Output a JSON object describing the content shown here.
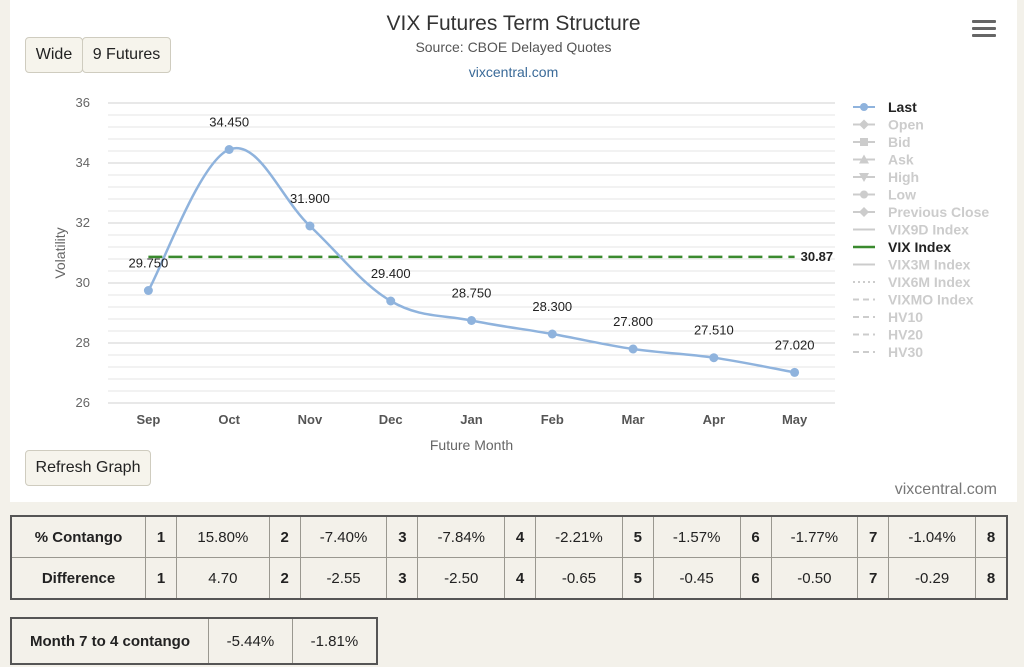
{
  "buttons": {
    "wide": "Wide",
    "futures": "9 Futures",
    "refresh": "Refresh Graph"
  },
  "header": {
    "title": "VIX Futures Term Structure",
    "subtitle": "Source: CBOE Delayed Quotes",
    "credit_link": "vixcentral.com"
  },
  "credit_corner": "vixcentral.com",
  "icons": {
    "menu": "hamburger-menu-icon"
  },
  "chart_data": {
    "type": "line",
    "title": "VIX Futures Term Structure",
    "subtitle": "Source: CBOE Delayed Quotes",
    "xlabel": "Future Month",
    "ylabel": "Volatility",
    "ylim": [
      26,
      36
    ],
    "yticks": [
      26,
      28,
      30,
      32,
      34,
      36
    ],
    "categories": [
      "Sep",
      "Oct",
      "Nov",
      "Dec",
      "Jan",
      "Feb",
      "Mar",
      "Apr",
      "May"
    ],
    "series": [
      {
        "name": "Last",
        "values": [
          29.75,
          34.45,
          31.9,
          29.4,
          28.75,
          28.3,
          27.8,
          27.51,
          27.02
        ],
        "labels": [
          "29.750",
          "34.450",
          "31.900",
          "29.400",
          "28.750",
          "28.300",
          "27.800",
          "27.510",
          "27.020"
        ],
        "color": "#8fb3dd"
      }
    ],
    "reference_lines": [
      {
        "name": "VIX Index",
        "value": 30.87,
        "label": "30.87",
        "color": "#3a8a2e",
        "style": "dashed"
      }
    ],
    "grid": true,
    "legend_position": "right",
    "legend": [
      {
        "name": "Last",
        "active": true,
        "symbol": "circle"
      },
      {
        "name": "Open",
        "active": false,
        "symbol": "diamond"
      },
      {
        "name": "Bid",
        "active": false,
        "symbol": "square"
      },
      {
        "name": "Ask",
        "active": false,
        "symbol": "triangle"
      },
      {
        "name": "High",
        "active": false,
        "symbol": "triangle-down"
      },
      {
        "name": "Low",
        "active": false,
        "symbol": "circle"
      },
      {
        "name": "Previous Close",
        "active": false,
        "symbol": "diamond"
      },
      {
        "name": "VIX9D Index",
        "active": false,
        "symbol": "line"
      },
      {
        "name": "VIX Index",
        "active": true,
        "symbol": "line-green"
      },
      {
        "name": "VIX3M Index",
        "active": false,
        "symbol": "line"
      },
      {
        "name": "VIX6M Index",
        "active": false,
        "symbol": "dotted"
      },
      {
        "name": "VIXMO Index",
        "active": false,
        "symbol": "dashed"
      },
      {
        "name": "HV10",
        "active": false,
        "symbol": "dashed"
      },
      {
        "name": "HV20",
        "active": false,
        "symbol": "dashed"
      },
      {
        "name": "HV30",
        "active": false,
        "symbol": "dashed"
      }
    ],
    "colors": {
      "active_legend": "#222222",
      "inactive_legend": "#cccccc",
      "grid": "#e6e6e6"
    }
  },
  "contango_table": {
    "rows": [
      {
        "label": "% Contango",
        "cells": [
          [
            "1",
            "15.80%"
          ],
          [
            "2",
            "-7.40%"
          ],
          [
            "3",
            "-7.84%"
          ],
          [
            "4",
            "-2.21%"
          ],
          [
            "5",
            "-1.57%"
          ],
          [
            "6",
            "-1.77%"
          ],
          [
            "7",
            "-1.04%"
          ],
          [
            "8",
            ""
          ]
        ]
      },
      {
        "label": "Difference",
        "cells": [
          [
            "1",
            "4.70"
          ],
          [
            "2",
            "-2.55"
          ],
          [
            "3",
            "-2.50"
          ],
          [
            "4",
            "-0.65"
          ],
          [
            "5",
            "-0.45"
          ],
          [
            "6",
            "-0.50"
          ],
          [
            "7",
            "-0.29"
          ],
          [
            "8",
            ""
          ]
        ]
      }
    ]
  },
  "summary_table": {
    "label": "Month 7 to 4 contango",
    "values": [
      "-5.44%",
      "-1.81%"
    ]
  }
}
